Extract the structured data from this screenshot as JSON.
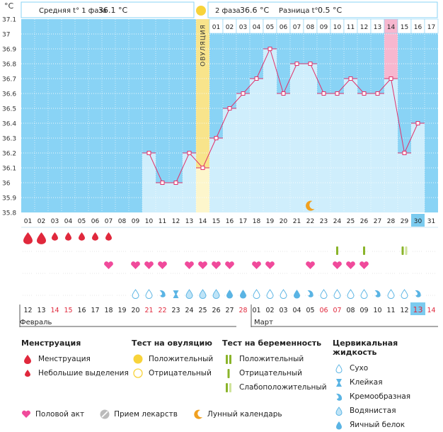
{
  "header": {
    "celsius": "°C",
    "phase1_label": "Средняя t° 1 фаза",
    "phase1_value": "36.1 °C",
    "phase2_label": "2 фаза",
    "phase2_value": "36.6 °C",
    "diff_label": "Разница t°",
    "diff_value": "0.5 °C"
  },
  "chart_data": {
    "type": "line",
    "ylabel": "°C",
    "ylim": [
      35.8,
      37.1
    ],
    "y_ticks": [
      "37.1",
      "37",
      "36.9",
      "36.8",
      "36.7",
      "36.6",
      "36.5",
      "36.4",
      "36.3",
      "36.2",
      "36.1",
      "36",
      "35.9",
      "35.8"
    ],
    "dates": [
      "01",
      "02",
      "03",
      "04",
      "05",
      "06",
      "07",
      "08",
      "09",
      "10",
      "11",
      "12",
      "13",
      "14",
      "15",
      "16",
      "17",
      "18",
      "19",
      "20",
      "21",
      "22",
      "23",
      "24",
      "25",
      "26",
      "27",
      "28",
      "29",
      "30",
      "31"
    ],
    "cycle_days": [
      "01",
      "02",
      "03",
      "04",
      "05",
      "06",
      "07",
      "08",
      "09",
      "10",
      "11",
      "12",
      "13",
      "14",
      "15",
      "16",
      "17"
    ],
    "temperatures": [
      null,
      null,
      null,
      null,
      null,
      null,
      null,
      null,
      null,
      36.2,
      36.0,
      36.0,
      36.2,
      36.1,
      36.3,
      36.5,
      36.6,
      36.7,
      36.9,
      36.6,
      36.8,
      36.8,
      36.6,
      36.6,
      36.7,
      36.6,
      36.6,
      36.7,
      36.2,
      36.4,
      null
    ],
    "ovulation_label": "ОВУЛЯЦИЯ",
    "ovulation_index": 13,
    "highlight_index": 27,
    "today_index": 29,
    "moon_index": 21,
    "menstruation": [
      2,
      2,
      1,
      1,
      1,
      1,
      1,
      0,
      0,
      0,
      0,
      0,
      0,
      0,
      0,
      0,
      0,
      0,
      0,
      0,
      0,
      0,
      0,
      0,
      0,
      0,
      0,
      0,
      0,
      0,
      0
    ],
    "pregnancy_tests": [
      0,
      0,
      0,
      0,
      0,
      0,
      0,
      0,
      0,
      0,
      0,
      0,
      0,
      0,
      0,
      0,
      0,
      0,
      0,
      0,
      0,
      0,
      0,
      1,
      0,
      1,
      0,
      0,
      2,
      0,
      0
    ],
    "intercourse": [
      0,
      0,
      0,
      0,
      0,
      0,
      1,
      0,
      1,
      1,
      1,
      0,
      1,
      1,
      1,
      1,
      0,
      1,
      1,
      0,
      0,
      1,
      0,
      1,
      1,
      1,
      0,
      0,
      0,
      0,
      0
    ],
    "cervical": [
      "",
      "",
      "",
      "",
      "",
      "",
      "",
      "",
      "d",
      "d",
      "c",
      "s",
      "w",
      "w",
      "w",
      "e",
      "e",
      "d",
      "d",
      "d",
      "e",
      "c",
      "d",
      "d",
      "d",
      "d",
      "c",
      "d",
      "d",
      "c",
      ""
    ],
    "calendar_days": [
      "12",
      "13",
      "14",
      "15",
      "16",
      "17",
      "18",
      "19",
      "20",
      "21",
      "22",
      "23",
      "24",
      "25",
      "26",
      "27",
      "28",
      "01",
      "02",
      "03",
      "04",
      "05",
      "06",
      "07",
      "08",
      "09",
      "10",
      "11",
      "12",
      "13",
      "14"
    ],
    "calendar_red": [
      2,
      3,
      9,
      10,
      16,
      22,
      23,
      29,
      30
    ],
    "month1": "Февраль",
    "month2": "Март",
    "colors": {
      "blue": "#89d3f5",
      "bar": "#cfeefc",
      "ovulation": "#f8e48b",
      "highlight": "#f7b7cf",
      "line": "#e0306a",
      "today": "#7bcbef",
      "red": "#e0283c",
      "pink": "#f04a9b",
      "green": "#8ab42a"
    }
  },
  "legend": {
    "menstruation": {
      "title": "Менструация",
      "items": [
        "Менструация",
        "Небольшие выделения"
      ]
    },
    "ovulation_test": {
      "title": "Тест на овуляцию",
      "items": [
        "Положительный",
        "Отрицательный"
      ]
    },
    "pregnancy_test": {
      "title": "Тест на беременность",
      "items": [
        "Положительный",
        "Отрицательный",
        "Слабоположительный"
      ]
    },
    "cervical": {
      "title": "Цервикальная жидкость",
      "items": [
        "Сухо",
        "Клейкая",
        "Кремообразная",
        "Водянистая",
        "Яичный белок"
      ]
    },
    "bottom": [
      "Половой акт",
      "Прием лекарств",
      "Лунный календарь"
    ]
  }
}
